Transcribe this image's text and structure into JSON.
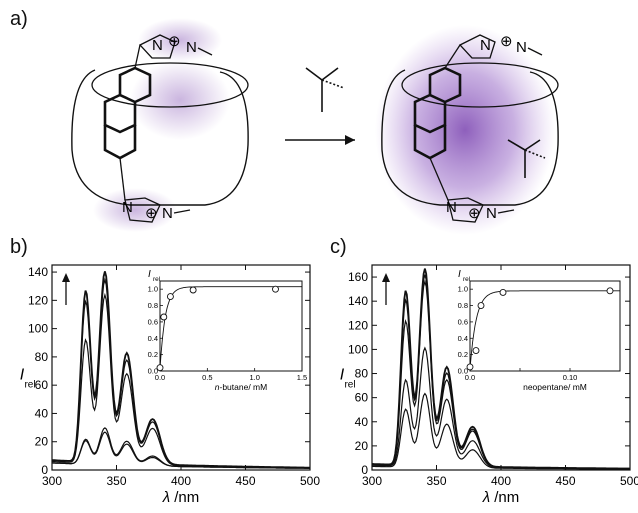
{
  "figure": {
    "panel_a": {
      "label": "a)",
      "charge_symbol": "⊕",
      "atom_N": "N",
      "glow_color": "#8a5bb8"
    },
    "panel_b": {
      "label": "b)"
    },
    "panel_c": {
      "label": "c)"
    }
  },
  "chart_data": [
    {
      "id": "b-main",
      "type": "line",
      "xlabel_symbol": "λ",
      "xlabel_unit": "/nm",
      "ylabel_main": "I",
      "ylabel_sub": "rel",
      "xlim": [
        300,
        500
      ],
      "ylim": [
        0,
        145
      ],
      "xticks": [
        300,
        350,
        400,
        450,
        500
      ],
      "yticks": [
        0,
        20,
        40,
        60,
        80,
        100,
        120,
        140
      ],
      "peaks_nm": [
        326,
        341,
        358,
        378
      ],
      "spectra_peak_heights": [
        [
          17,
          23,
          15,
          6
        ],
        [
          18,
          26,
          17,
          7
        ],
        [
          89,
          119,
          64,
          26
        ],
        [
          116,
          129,
          73,
          30
        ],
        [
          124,
          135,
          78,
          32
        ]
      ],
      "spectra_baseline": [
        5,
        5,
        6,
        7,
        7
      ],
      "arrow_direction": "up"
    },
    {
      "id": "b-inset",
      "type": "scatter",
      "xlabel_italic": "n",
      "xlabel_rest": "-butane/ mM",
      "ylabel_main": "I",
      "ylabel_sub": "rel",
      "xlim": [
        0,
        1.5
      ],
      "ylim": [
        0,
        1.1
      ],
      "xticks": [
        0.0,
        0.5,
        1.0,
        1.5
      ],
      "xtick_labels": [
        "0.0",
        "0.5",
        "1.0",
        "1.5"
      ],
      "yticks": [
        0.0,
        0.2,
        0.4,
        0.6,
        0.8,
        1.0
      ],
      "ytick_labels": [
        "0.0",
        "0.2",
        "0.4",
        "0.6",
        "0.8",
        "1.0"
      ],
      "x": [
        0.0,
        0.04,
        0.11,
        0.35,
        1.22
      ],
      "y": [
        0.04,
        0.66,
        0.91,
        0.99,
        1.0
      ],
      "fit_ymax": 1.03,
      "fit_k": 18
    },
    {
      "id": "c-main",
      "type": "line",
      "xlabel_symbol": "λ",
      "xlabel_unit": "/nm",
      "ylabel_main": "I",
      "ylabel_sub": "rel",
      "xlim": [
        300,
        500
      ],
      "ylim": [
        0,
        170
      ],
      "xticks": [
        300,
        350,
        400,
        450,
        500
      ],
      "yticks": [
        0,
        20,
        40,
        60,
        80,
        100,
        120,
        140,
        160
      ],
      "peaks_nm": [
        326,
        341,
        358,
        378
      ],
      "spectra_peak_heights": [
        [
          49,
          61,
          36,
          15
        ],
        [
          73,
          98,
          56,
          22
        ],
        [
          123,
          153,
          72,
          30
        ],
        [
          140,
          158,
          77,
          31
        ],
        [
          148,
          163,
          82,
          33
        ]
      ],
      "spectra_baseline": [
        3,
        4,
        4,
        5,
        5
      ],
      "arrow_direction": "up"
    },
    {
      "id": "c-inset",
      "type": "scatter",
      "xlabel_italic": "",
      "xlabel_rest": "neopentane/ mM",
      "ylabel_main": "I",
      "ylabel_sub": "rel",
      "xlim": [
        0,
        0.15
      ],
      "ylim": [
        0,
        1.1
      ],
      "xticks": [
        0.0,
        0.05,
        0.1,
        0.15
      ],
      "xtick_labels": [
        "0.0",
        "",
        "0.10",
        ""
      ],
      "minor_xticks": [
        0.05,
        0.15
      ],
      "yticks": [
        0.0,
        0.2,
        0.4,
        0.6,
        0.8,
        1.0
      ],
      "ytick_labels": [
        "0.0",
        "0.2",
        "0.4",
        "0.6",
        "0.8",
        "1.0"
      ],
      "x": [
        0.0,
        0.006,
        0.011,
        0.033,
        0.14
      ],
      "y": [
        0.05,
        0.25,
        0.8,
        0.96,
        0.98
      ],
      "fit_ymax": 0.98,
      "fit_k": 160
    }
  ]
}
